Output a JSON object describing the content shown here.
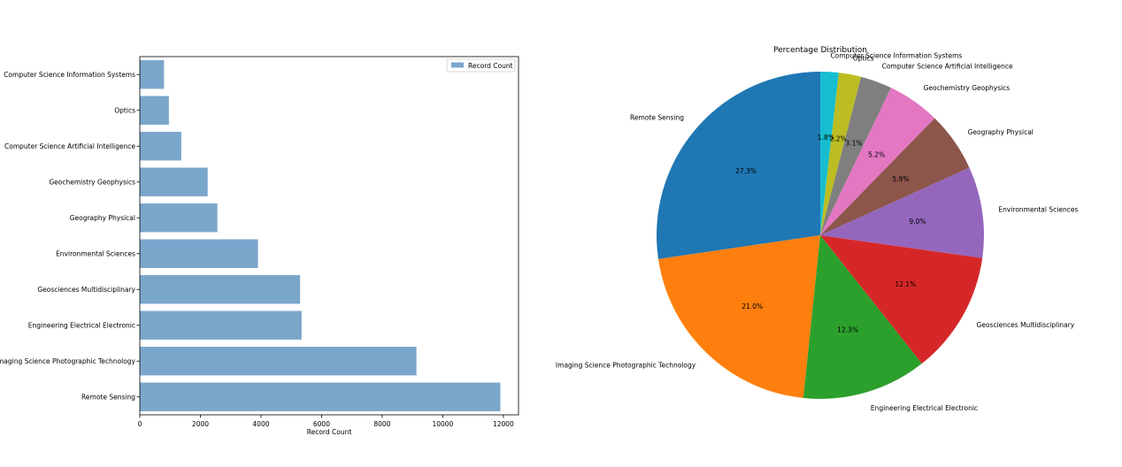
{
  "chart_data": [
    {
      "type": "bar",
      "orientation": "horizontal",
      "categories": [
        "Remote Sensing",
        "Imaging Science Photographic Technology",
        "Engineering Electrical Electronic",
        "Geosciences Multidisciplinary",
        "Environmental Sciences",
        "Geography Physical",
        "Geochemistry Geophysics",
        "Computer Science Artificial Intelligence",
        "Optics",
        "Computer Science Information Systems"
      ],
      "series": [
        {
          "name": "Record Count",
          "values": [
            11900,
            9130,
            5340,
            5290,
            3900,
            2560,
            2240,
            1370,
            960,
            800
          ]
        }
      ],
      "title": "",
      "xlabel": "Record Count",
      "ylabel": "",
      "xlim": [
        0,
        12500
      ],
      "xticks": [
        0,
        2000,
        4000,
        6000,
        8000,
        10000,
        12000
      ],
      "legend_position": "upper right",
      "bar_color": "#7ba6cc",
      "grid": false
    },
    {
      "type": "pie",
      "title": "Percentage Distribution",
      "start_angle_deg": 90,
      "direction": "counterclockwise",
      "slices": [
        {
          "label": "Remote Sensing",
          "value": 27.3,
          "pct_label": "27.3%",
          "color": "#1f77b4"
        },
        {
          "label": "Imaging Science Photographic Technology",
          "value": 21.0,
          "pct_label": "21.0%",
          "color": "#ff7f0e"
        },
        {
          "label": "Engineering Electrical Electronic",
          "value": 12.3,
          "pct_label": "12.3%",
          "color": "#2ca02c"
        },
        {
          "label": "Geosciences Multidisciplinary",
          "value": 12.1,
          "pct_label": "12.1%",
          "color": "#d62728"
        },
        {
          "label": "Environmental Sciences",
          "value": 9.0,
          "pct_label": "9.0%",
          "color": "#9467bd"
        },
        {
          "label": "Geography Physical",
          "value": 5.9,
          "pct_label": "5.9%",
          "color": "#8c564b"
        },
        {
          "label": "Geochemistry Geophysics",
          "value": 5.2,
          "pct_label": "5.2%",
          "color": "#e377c2"
        },
        {
          "label": "Computer Science Artificial Intelligence",
          "value": 3.1,
          "pct_label": "3.1%",
          "color": "#7f7f7f"
        },
        {
          "label": "Optics",
          "value": 2.2,
          "pct_label": "2.2%",
          "color": "#bcbd22"
        },
        {
          "label": "Computer Science Information Systems",
          "value": 1.8,
          "pct_label": "1.8%",
          "color": "#17becf"
        }
      ]
    }
  ]
}
